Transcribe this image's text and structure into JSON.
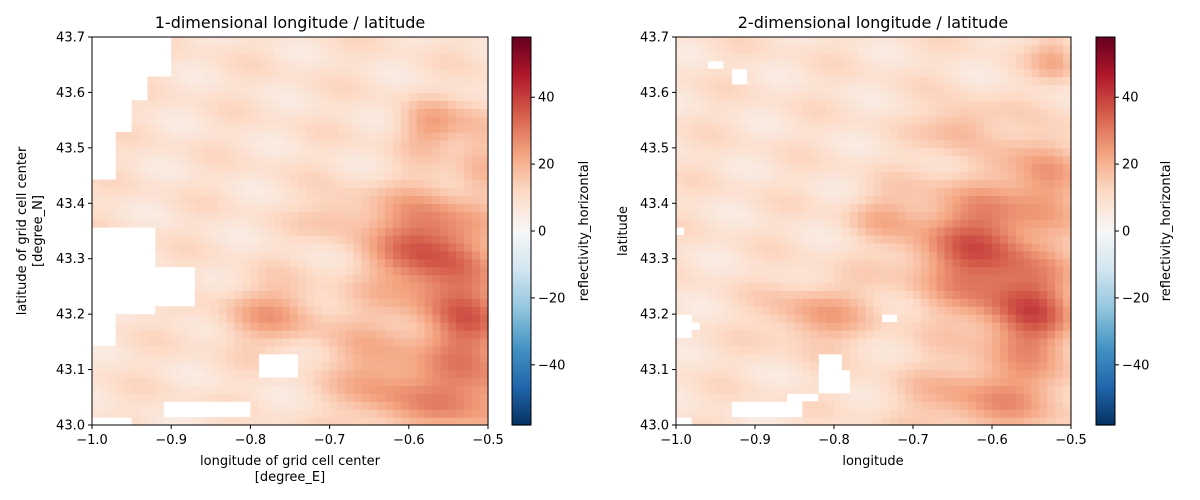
{
  "chart_data": [
    {
      "type": "heatmap",
      "title": "1-dimensional longitude / latitude",
      "xlabel_lines": [
        "longitude of grid cell center",
        "[degree_E]"
      ],
      "ylabel_lines": [
        "latitude of grid cell center",
        "[degree_N]"
      ],
      "xlim": [
        -1.0,
        -0.5
      ],
      "ylim": [
        43.0,
        43.7
      ],
      "xticks": [
        "−1.0",
        "−0.9",
        "−0.8",
        "−0.7",
        "−0.6",
        "−0.5"
      ],
      "yticks": [
        "43.0",
        "43.1",
        "43.2",
        "43.3",
        "43.4",
        "43.5",
        "43.6",
        "43.7"
      ],
      "grid": false,
      "colorbar": {
        "label": "reflectivity_horizontal",
        "colormap": "RdBu_r",
        "vmin": -58,
        "vmax": 58,
        "ticks": [
          "−40",
          "−20",
          "0",
          "20",
          "40"
        ]
      },
      "field": {
        "background": 9,
        "blobs": [
          {
            "lon": -0.575,
            "lat": 43.32,
            "sx": 0.05,
            "sy": 0.07,
            "amp": 28
          },
          {
            "lon": -0.52,
            "lat": 43.18,
            "sx": 0.04,
            "sy": 0.06,
            "amp": 22
          },
          {
            "lon": -0.53,
            "lat": 43.05,
            "sx": 0.07,
            "sy": 0.05,
            "amp": 18
          },
          {
            "lon": -0.64,
            "lat": 43.1,
            "sx": 0.04,
            "sy": 0.07,
            "amp": 12
          },
          {
            "lon": -0.77,
            "lat": 43.2,
            "sx": 0.045,
            "sy": 0.04,
            "amp": 14
          },
          {
            "lon": -0.57,
            "lat": 43.54,
            "sx": 0.03,
            "sy": 0.03,
            "amp": 14
          },
          {
            "lon": -0.51,
            "lat": 43.5,
            "sx": 0.02,
            "sy": 0.06,
            "amp": 10
          },
          {
            "lon": -0.69,
            "lat": 43.38,
            "sx": 0.03,
            "sy": 0.03,
            "amp": 8
          }
        ],
        "missing_regions": [
          {
            "lon": [
              -1.0,
              -0.935
            ],
            "lat": [
              43.59,
              43.7
            ]
          },
          {
            "lon": [
              -0.935,
              -0.9
            ],
            "lat": [
              43.63,
              43.7
            ]
          },
          {
            "lon": [
              -1.0,
              -0.955
            ],
            "lat": [
              43.53,
              43.59
            ]
          },
          {
            "lon": [
              -1.0,
              -0.975
            ],
            "lat": [
              43.44,
              43.53
            ]
          },
          {
            "lon": [
              -1.0,
              -0.925
            ],
            "lat": [
              43.2,
              43.36
            ]
          },
          {
            "lon": [
              -0.925,
              -0.87
            ],
            "lat": [
              43.22,
              43.28
            ]
          },
          {
            "lon": [
              -1.0,
              -0.97
            ],
            "lat": [
              43.15,
              43.2
            ]
          },
          {
            "lon": [
              -0.79,
              -0.745
            ],
            "lat": [
              43.09,
              43.13
            ]
          },
          {
            "lon": [
              -0.905,
              -0.8
            ],
            "lat": [
              43.02,
              43.04
            ]
          },
          {
            "lon": [
              -1.0,
              -0.955
            ],
            "lat": [
              43.0,
              43.02
            ]
          }
        ]
      }
    },
    {
      "type": "heatmap",
      "title": "2-dimensional longitude / latitude",
      "xlabel_lines": [
        "longitude"
      ],
      "ylabel_lines": [
        "latitude"
      ],
      "xlim": [
        -1.0,
        -0.5
      ],
      "ylim": [
        43.0,
        43.7
      ],
      "xticks": [
        "−1.0",
        "−0.9",
        "−0.8",
        "−0.7",
        "−0.6",
        "−0.5"
      ],
      "yticks": [
        "43.0",
        "43.1",
        "43.2",
        "43.3",
        "43.4",
        "43.5",
        "43.6",
        "43.7"
      ],
      "grid": false,
      "colorbar": {
        "label": "reflectivity_horizontal",
        "colormap": "RdBu_r",
        "vmin": -58,
        "vmax": 58,
        "ticks": [
          "−40",
          "−20",
          "0",
          "20",
          "40"
        ]
      },
      "field": {
        "background": 9,
        "blobs": [
          {
            "lon": -0.62,
            "lat": 43.32,
            "sx": 0.06,
            "sy": 0.08,
            "amp": 26
          },
          {
            "lon": -0.55,
            "lat": 43.2,
            "sx": 0.04,
            "sy": 0.06,
            "amp": 24
          },
          {
            "lon": -0.53,
            "lat": 43.45,
            "sx": 0.03,
            "sy": 0.06,
            "amp": 16
          },
          {
            "lon": -0.6,
            "lat": 43.05,
            "sx": 0.07,
            "sy": 0.05,
            "amp": 16
          },
          {
            "lon": -0.82,
            "lat": 43.2,
            "sx": 0.045,
            "sy": 0.04,
            "amp": 14
          },
          {
            "lon": -0.64,
            "lat": 43.54,
            "sx": 0.03,
            "sy": 0.03,
            "amp": 12
          },
          {
            "lon": -0.52,
            "lat": 43.66,
            "sx": 0.02,
            "sy": 0.03,
            "amp": 12
          },
          {
            "lon": -0.74,
            "lat": 43.38,
            "sx": 0.03,
            "sy": 0.03,
            "amp": 8
          }
        ],
        "missing_regions": [
          {
            "lon": [
              -0.955,
              -0.94
            ],
            "lat": [
              43.64,
              43.66
            ]
          },
          {
            "lon": [
              -0.925,
              -0.91
            ],
            "lat": [
              43.62,
              43.64
            ]
          },
          {
            "lon": [
              -1.0,
              -0.99
            ],
            "lat": [
              43.35,
              43.36
            ]
          },
          {
            "lon": [
              -1.0,
              -0.985
            ],
            "lat": [
              43.16,
              43.2
            ]
          },
          {
            "lon": [
              -0.985,
              -0.97
            ],
            "lat": [
              43.17,
              43.19
            ]
          },
          {
            "lon": [
              -0.82,
              -0.795
            ],
            "lat": [
              43.06,
              43.13
            ]
          },
          {
            "lon": [
              -0.795,
              -0.78
            ],
            "lat": [
              43.06,
              43.1
            ]
          },
          {
            "lon": [
              -0.735,
              -0.72
            ],
            "lat": [
              43.19,
              43.2
            ]
          },
          {
            "lon": [
              -0.93,
              -0.84
            ],
            "lat": [
              43.02,
              43.04
            ]
          },
          {
            "lon": [
              -0.86,
              -0.82
            ],
            "lat": [
              43.04,
              43.05
            ]
          },
          {
            "lon": [
              -1.0,
              -0.985
            ],
            "lat": [
              43.0,
              43.01
            ]
          }
        ]
      }
    }
  ]
}
